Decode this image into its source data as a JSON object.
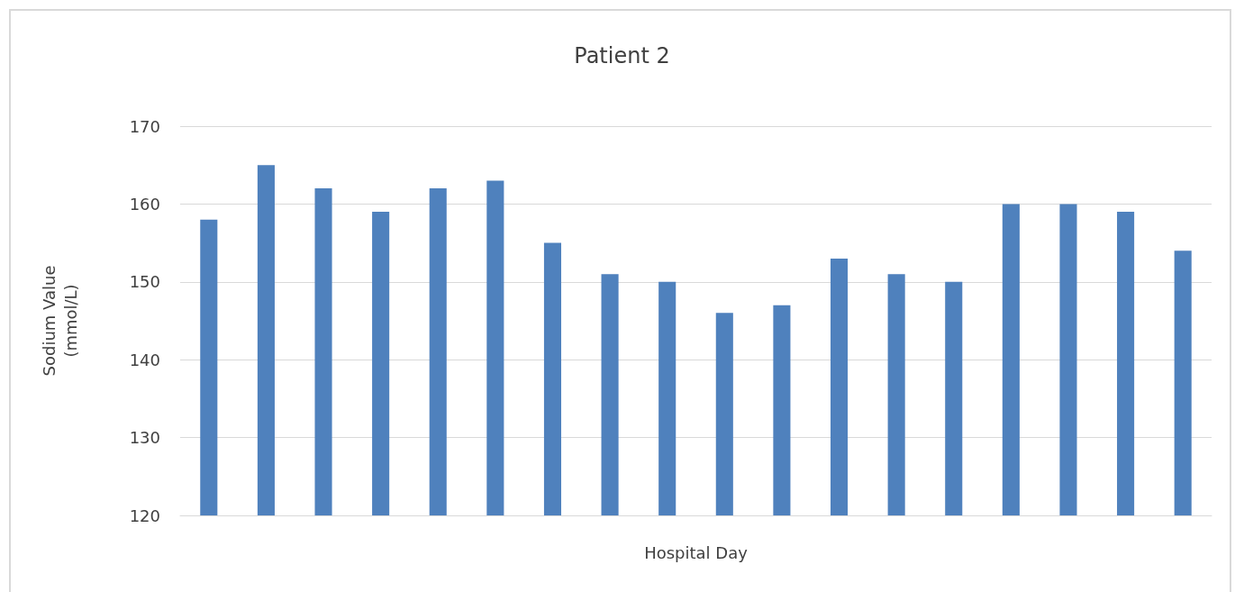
{
  "chart_data": {
    "type": "bar",
    "title": "Patient 2",
    "xlabel": "Hospital Day",
    "ylabel": "Sodium Value\n(mmol/L)",
    "categories": [
      null,
      null,
      null,
      null,
      null,
      null,
      null,
      null,
      null,
      null,
      null,
      null,
      null,
      null,
      null,
      null,
      null,
      null
    ],
    "values": [
      158,
      165,
      162,
      159,
      162,
      163,
      155,
      151,
      150,
      146,
      147,
      153,
      151,
      150,
      160,
      160,
      159,
      154
    ],
    "color": "#4f81bd",
    "ylim": [
      120,
      170
    ],
    "yticks": [
      120,
      130,
      140,
      150,
      160,
      170
    ],
    "grid": "y"
  }
}
